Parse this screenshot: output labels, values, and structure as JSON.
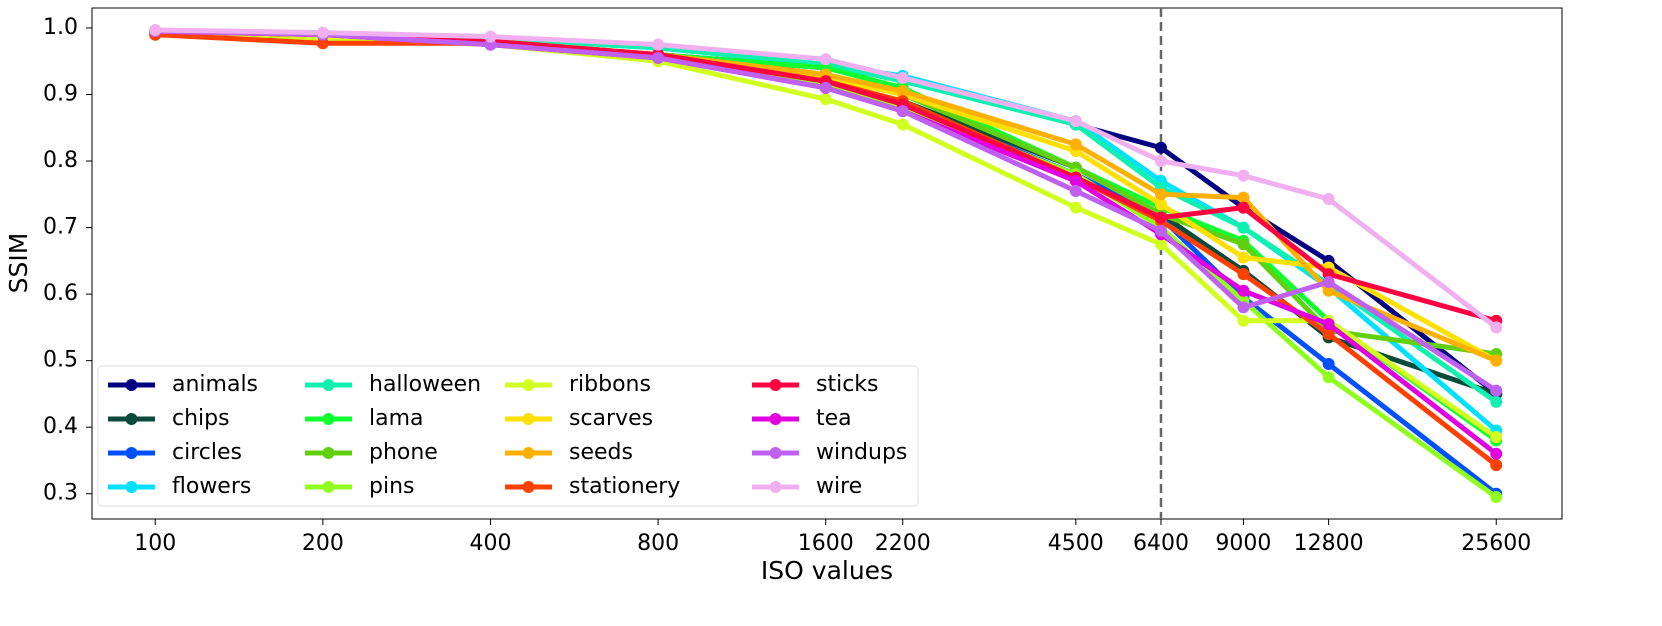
{
  "chart_data": {
    "type": "line",
    "xlabel": "ISO values",
    "ylabel": "SSIM",
    "xscale": "log",
    "xlim": [
      77,
      33600
    ],
    "ylim": [
      0.262,
      1.03
    ],
    "xticks": [
      100,
      200,
      400,
      800,
      1600,
      2200,
      4500,
      6400,
      9000,
      12800,
      25600
    ],
    "yticks": [
      0.3,
      0.4,
      0.5,
      0.6,
      0.7,
      0.8,
      0.9,
      {
        "value": 1,
        "label": "1.0"
      }
    ],
    "vline": 6400,
    "grid": false,
    "legend": "lower left",
    "x": [
      100,
      200,
      400,
      800,
      1600,
      2200,
      4500,
      6400,
      9000,
      12800,
      25600
    ],
    "series": [
      {
        "name": "animals",
        "color": "#000080",
        "values": [
          0.995,
          0.99,
          0.98,
          0.96,
          0.94,
          0.925,
          0.855,
          0.82,
          0.73,
          0.65,
          0.45
        ]
      },
      {
        "name": "chips",
        "color": "#0a4a3a",
        "values": [
          0.99,
          0.99,
          0.98,
          0.955,
          0.915,
          0.89,
          0.79,
          0.72,
          0.635,
          0.535,
          0.45
        ]
      },
      {
        "name": "circles",
        "color": "#0050ff",
        "values": [
          0.99,
          0.99,
          0.98,
          0.955,
          0.915,
          0.885,
          0.78,
          0.715,
          0.595,
          0.495,
          0.3
        ]
      },
      {
        "name": "flowers",
        "color": "#00e0ff",
        "values": [
          0.995,
          0.99,
          0.985,
          0.97,
          0.945,
          0.928,
          0.86,
          0.77,
          0.7,
          0.61,
          0.395
        ]
      },
      {
        "name": "halloween",
        "color": "#10f0b0",
        "values": [
          0.995,
          0.99,
          0.985,
          0.97,
          0.945,
          0.92,
          0.855,
          0.76,
          0.7,
          0.615,
          0.438
        ]
      },
      {
        "name": "lama",
        "color": "#10ff30",
        "values": [
          0.99,
          0.99,
          0.98,
          0.96,
          0.94,
          0.91,
          0.79,
          0.73,
          0.68,
          0.56,
          0.38
        ]
      },
      {
        "name": "phone",
        "color": "#60d010",
        "values": [
          0.99,
          0.99,
          0.98,
          0.96,
          0.93,
          0.9,
          0.79,
          0.72,
          0.675,
          0.545,
          0.51
        ]
      },
      {
        "name": "pins",
        "color": "#90ff20",
        "values": [
          0.99,
          0.99,
          0.975,
          0.955,
          0.915,
          0.88,
          0.78,
          0.7,
          0.59,
          0.475,
          0.295
        ]
      },
      {
        "name": "ribbons",
        "color": "#d0ff20",
        "values": [
          0.99,
          0.985,
          0.975,
          0.95,
          0.893,
          0.855,
          0.73,
          0.675,
          0.56,
          0.56,
          0.385
        ]
      },
      {
        "name": "scarves",
        "color": "#ffe000",
        "values": [
          0.995,
          0.99,
          0.98,
          0.96,
          0.925,
          0.9,
          0.815,
          0.735,
          0.655,
          0.64,
          0.5
        ]
      },
      {
        "name": "seeds",
        "color": "#ffb000",
        "values": [
          0.995,
          0.99,
          0.98,
          0.96,
          0.93,
          0.905,
          0.825,
          0.75,
          0.745,
          0.605,
          0.5
        ]
      },
      {
        "name": "stationery",
        "color": "#ff4000",
        "values": [
          0.99,
          0.977,
          0.977,
          0.96,
          0.92,
          0.89,
          0.775,
          0.71,
          0.63,
          0.54,
          0.343
        ]
      },
      {
        "name": "sticks",
        "color": "#ff0040",
        "values": [
          0.995,
          0.99,
          0.98,
          0.96,
          0.92,
          0.885,
          0.775,
          0.715,
          0.73,
          0.63,
          0.56
        ]
      },
      {
        "name": "tea",
        "color": "#e000e0",
        "values": [
          0.995,
          0.99,
          0.975,
          0.955,
          0.91,
          0.875,
          0.77,
          0.69,
          0.605,
          0.555,
          0.36
        ]
      },
      {
        "name": "windups",
        "color": "#c060f0",
        "values": [
          0.995,
          0.99,
          0.975,
          0.955,
          0.91,
          0.875,
          0.755,
          0.695,
          0.58,
          0.618,
          0.455
        ]
      },
      {
        "name": "wire",
        "color": "#f0b0f0",
        "values": [
          0.997,
          0.993,
          0.987,
          0.975,
          0.953,
          0.925,
          0.86,
          0.8,
          0.778,
          0.743,
          0.55
        ]
      }
    ]
  }
}
